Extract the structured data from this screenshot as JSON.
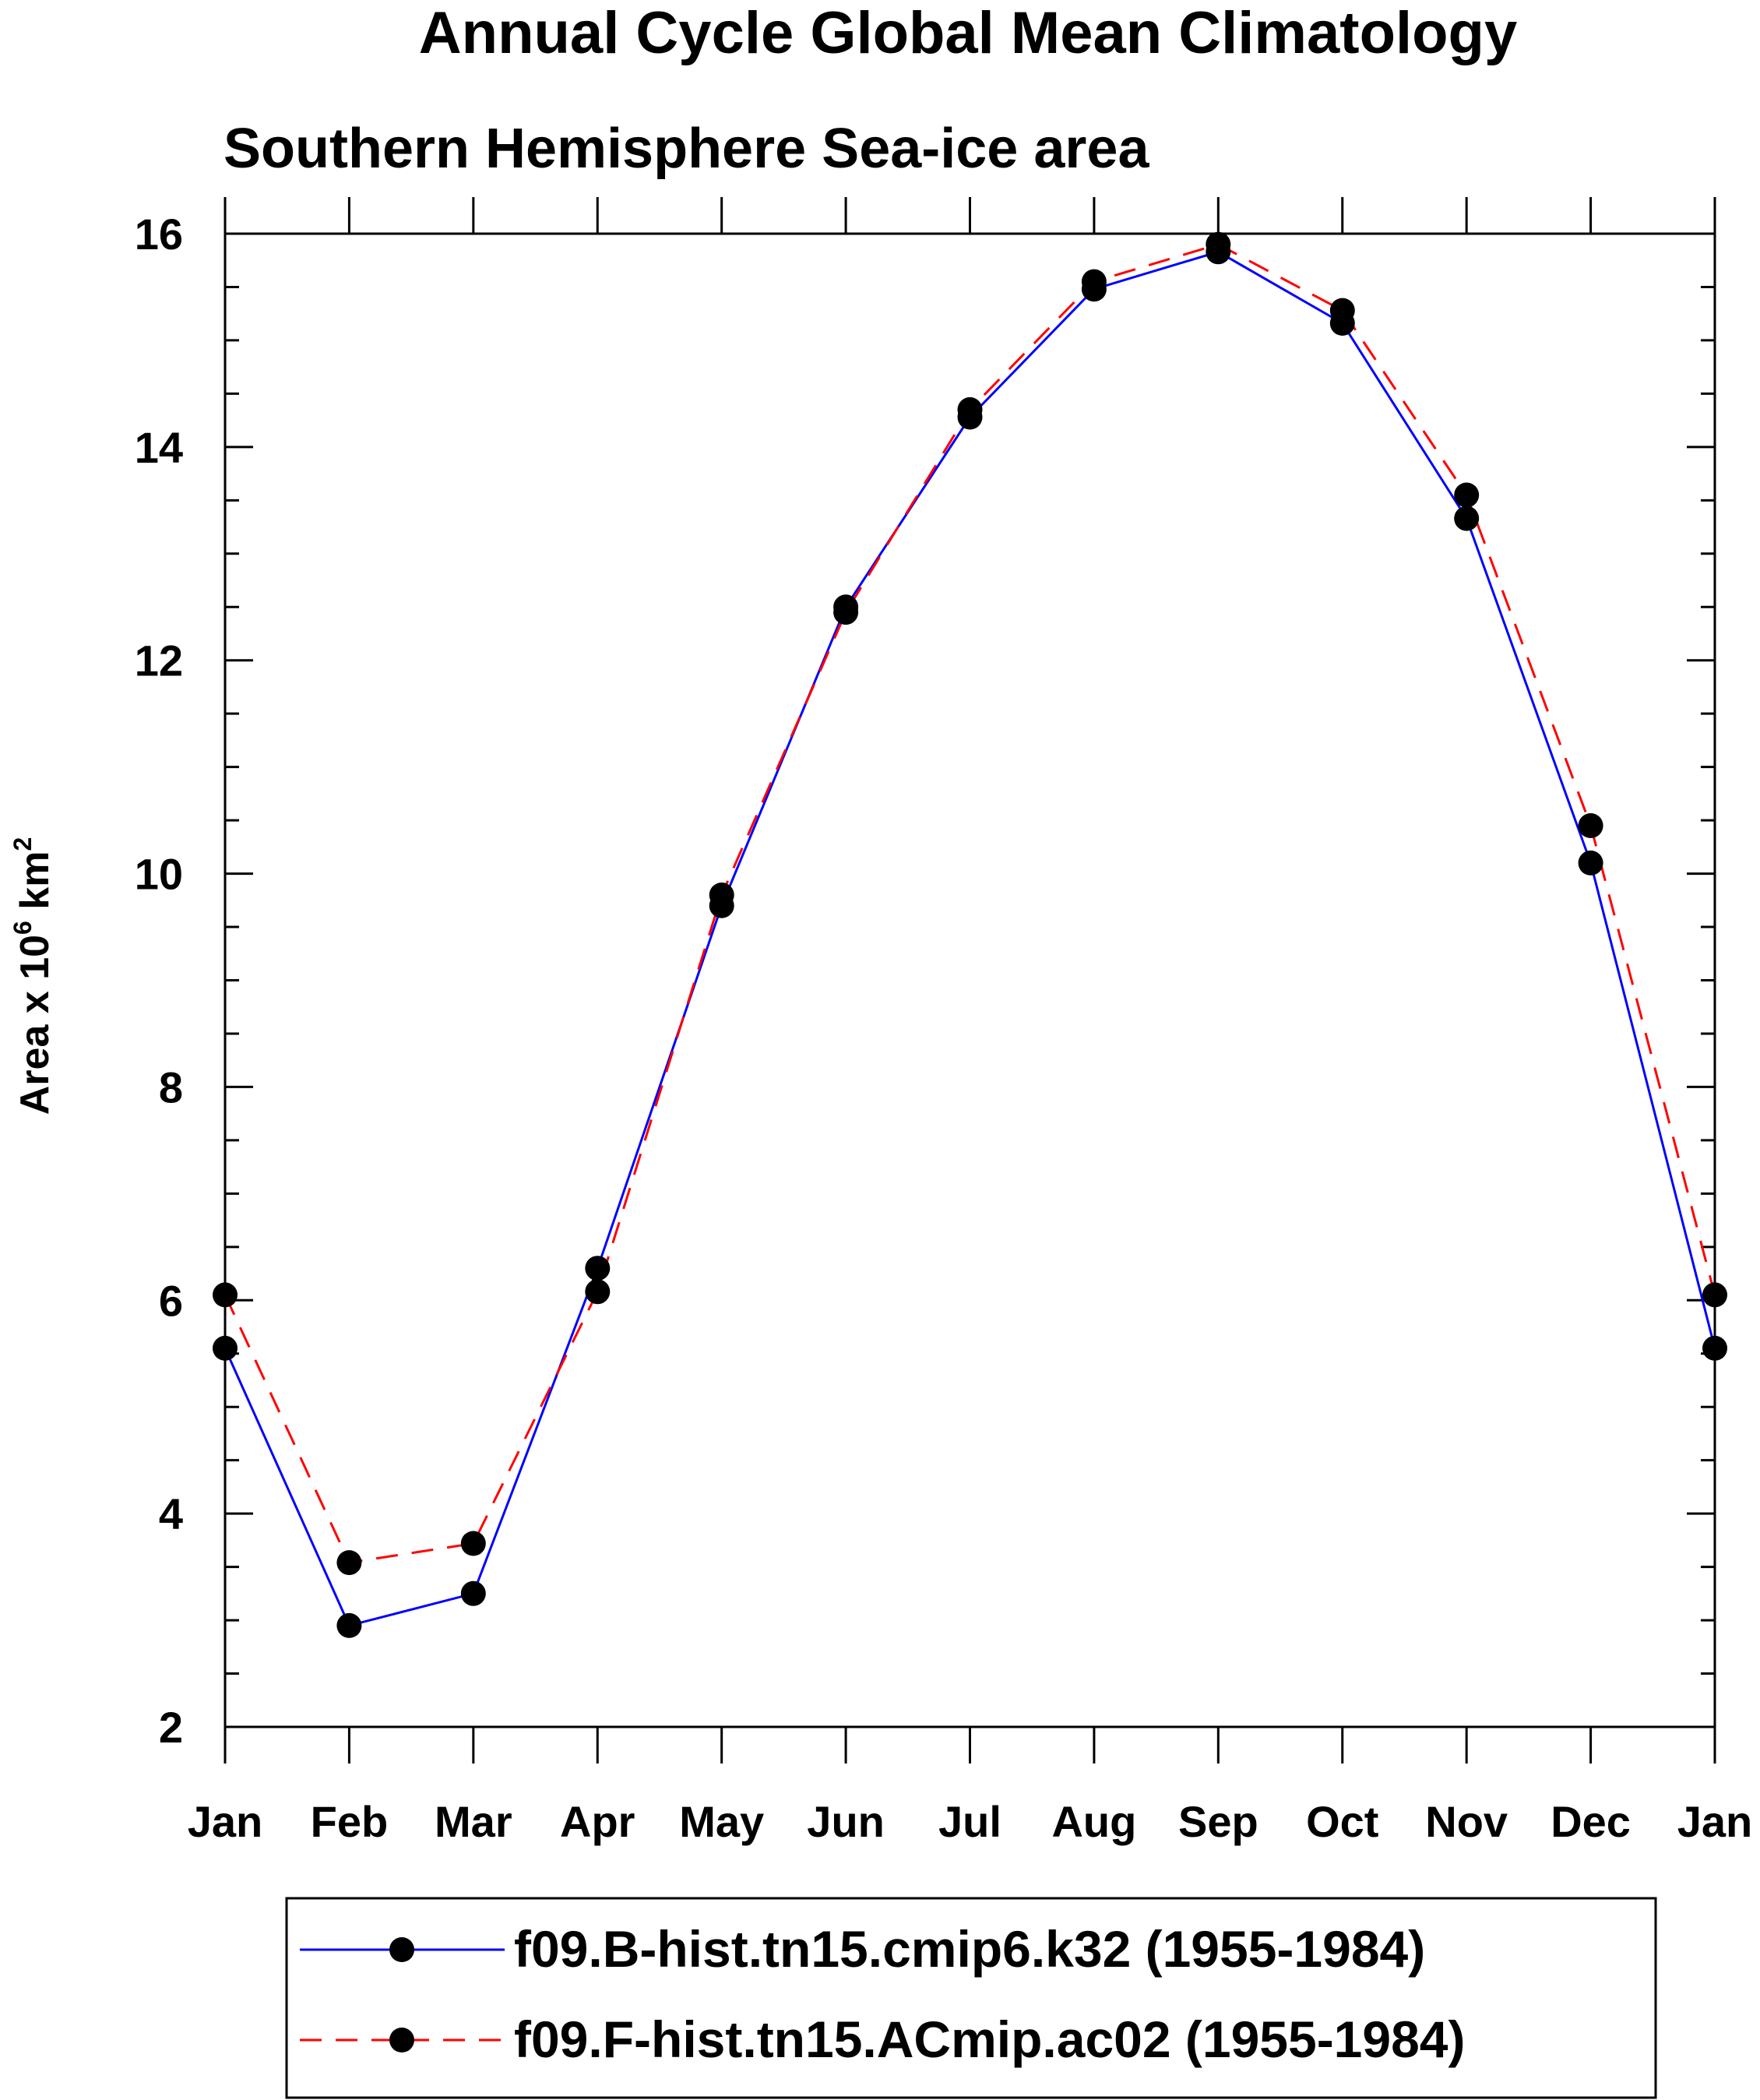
{
  "chart_data": {
    "type": "line",
    "title": "Annual Cycle Global Mean Climatology",
    "subtitle": "Southern Hemisphere Sea-ice area",
    "ylabel_main": "Area x 10",
    "ylabel_sup1": "6",
    "ylabel_mid": " km",
    "ylabel_sup2": "2",
    "categories": [
      "Jan",
      "Feb",
      "Mar",
      "Apr",
      "May",
      "Jun",
      "Jul",
      "Aug",
      "Sep",
      "Oct",
      "Nov",
      "Dec",
      "Jan"
    ],
    "ylim": [
      2,
      16
    ],
    "yticks": [
      "2",
      "4",
      "6",
      "8",
      "10",
      "12",
      "14",
      "16"
    ],
    "grid": false,
    "legend_position": "bottom",
    "series": [
      {
        "name": "f09.B-hist.tn15.cmip6.k32 (1955-1984)",
        "color": "#0000ff",
        "dash": "solid",
        "values": [
          5.55,
          2.95,
          3.25,
          6.3,
          9.7,
          12.5,
          14.28,
          15.48,
          15.83,
          15.16,
          13.33,
          10.1,
          5.55
        ]
      },
      {
        "name": "f09.F-hist.tn15.ACmip.ac02 (1955-1984)",
        "color": "#ff0000",
        "dash": "dashed",
        "values": [
          6.05,
          3.54,
          3.72,
          6.08,
          9.8,
          12.45,
          14.35,
          15.55,
          15.9,
          15.28,
          13.55,
          10.45,
          6.05
        ]
      }
    ]
  }
}
